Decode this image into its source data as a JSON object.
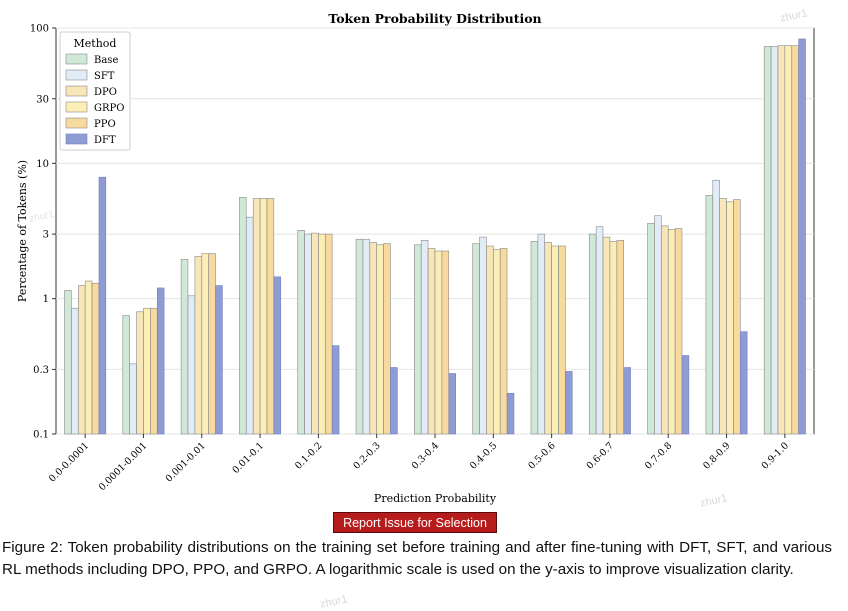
{
  "chart_data": {
    "type": "bar",
    "title": "Token Probability Distribution",
    "xlabel": "Prediction Probability",
    "ylabel": "Percentage of Tokens (%)",
    "yscale": "log",
    "ylim": [
      0.1,
      100
    ],
    "yticks": [
      0.1,
      0.3,
      1,
      3,
      10,
      30,
      100
    ],
    "ytick_labels": [
      "0.1",
      "0.3",
      "1",
      "3",
      "10",
      "30",
      "100"
    ],
    "legend_title": "Method",
    "legend_position": "top-left",
    "categories": [
      "0.0-0.0001",
      "0.0001-0.001",
      "0.001-0.01",
      "0.01-0.1",
      "0.1-0.2",
      "0.2-0.3",
      "0.3-0.4",
      "0.4-0.5",
      "0.5-0.6",
      "0.6-0.7",
      "0.7-0.8",
      "0.8-0.9",
      "0.9-1.0"
    ],
    "series": [
      {
        "name": "Base",
        "color": "#cfe9d6",
        "values": [
          1.15,
          0.75,
          1.95,
          5.6,
          3.2,
          2.75,
          2.5,
          2.55,
          2.65,
          3.0,
          3.6,
          5.8,
          73
        ]
      },
      {
        "name": "SFT",
        "color": "#e1ecf6",
        "values": [
          0.85,
          0.33,
          1.05,
          4.0,
          3.0,
          2.75,
          2.7,
          2.85,
          3.0,
          3.4,
          4.1,
          7.5,
          73
        ]
      },
      {
        "name": "DPO",
        "color": "#f8e6b8",
        "values": [
          1.25,
          0.8,
          2.05,
          5.5,
          3.05,
          2.6,
          2.35,
          2.45,
          2.6,
          2.85,
          3.45,
          5.5,
          74
        ]
      },
      {
        "name": "GRPO",
        "color": "#fcefb6",
        "values": [
          1.35,
          0.85,
          2.15,
          5.5,
          3.0,
          2.5,
          2.25,
          2.3,
          2.45,
          2.65,
          3.25,
          5.2,
          74
        ]
      },
      {
        "name": "PPO",
        "color": "#f8d99e",
        "values": [
          1.3,
          0.85,
          2.15,
          5.5,
          3.0,
          2.55,
          2.25,
          2.35,
          2.45,
          2.7,
          3.3,
          5.4,
          74
        ]
      },
      {
        "name": "DFT",
        "color": "#8f9bd3",
        "values": [
          7.9,
          1.2,
          1.25,
          1.45,
          0.45,
          0.31,
          0.28,
          0.2,
          0.29,
          0.31,
          0.38,
          0.57,
          83
        ]
      }
    ]
  },
  "report_button": {
    "label": "Report Issue for Selection"
  },
  "caption": "Figure 2: Token probability distributions on the training set before training and after fine-tuning with DFT, SFT, and various RL methods including DPO, PPO, and GRPO. A logarithmic scale is used on the y-axis to improve visualization clarity.",
  "watermark": "zhur1"
}
